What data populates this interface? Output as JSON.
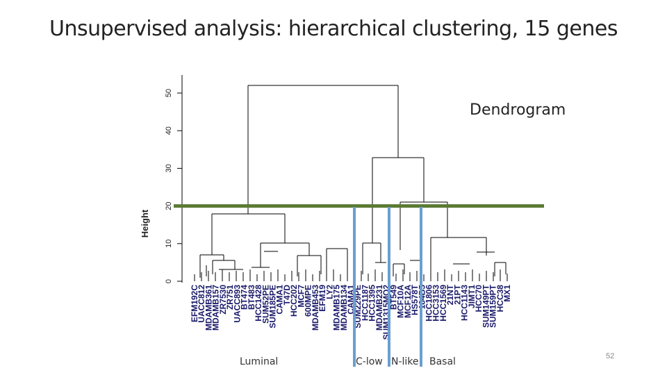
{
  "slide": {
    "title": "Unsupervised analysis: hierarchical clustering, 15 genes",
    "annotation": "Dendrogram",
    "page_number": "52",
    "groups": [
      "Luminal",
      "C-low",
      "N-like",
      "Basal"
    ]
  },
  "chart_data": {
    "type": "dendrogram",
    "ylabel": "Height",
    "ylim": [
      0,
      55
    ],
    "yticks": [
      0,
      10,
      20,
      30,
      40,
      50
    ],
    "cut_height": 20,
    "leaves": [
      "EFM192C",
      "UACC812",
      "MDAMB361",
      "MDAMB157",
      "ZR7530",
      "ZR751",
      "UACC893",
      "BT474",
      "BT483",
      "HCC1428",
      "SUM52PE",
      "SUM185PE",
      "CAMA1",
      "T47D",
      "HCC202",
      "MCF7",
      "600MPE",
      "MDAMB453",
      "EFM19",
      "LY2",
      "MDAMB175",
      "MDAMB134",
      "CAMA1",
      "SUM229PE",
      "HCC1187",
      "HCC1395",
      "MDAMB231",
      "SUM1315MO2",
      "BT549",
      "MCF10A",
      "MCF12A",
      "HS578T",
      "184B5",
      "HCC1806",
      "HCC3153",
      "HCC1569",
      "21NT",
      "21PT",
      "HCC1143",
      "JIMT1",
      "HCC70",
      "SUM149PT",
      "SUM159PT",
      "HCC38",
      "MX1"
    ],
    "merges": [
      {
        "height": 52,
        "span": [
          "Luminal",
          "non-luminal"
        ]
      },
      {
        "height": 34,
        "span": [
          "C-low/N-like",
          "Basal"
        ]
      },
      {
        "height": 21,
        "span": [
          "Basal"
        ]
      },
      {
        "height": 18,
        "span": [
          "Luminal"
        ]
      }
    ],
    "colors": {
      "cut_line": "#5a7a32",
      "group_lines": "#6a9fd0",
      "tree": "#000000"
    }
  }
}
